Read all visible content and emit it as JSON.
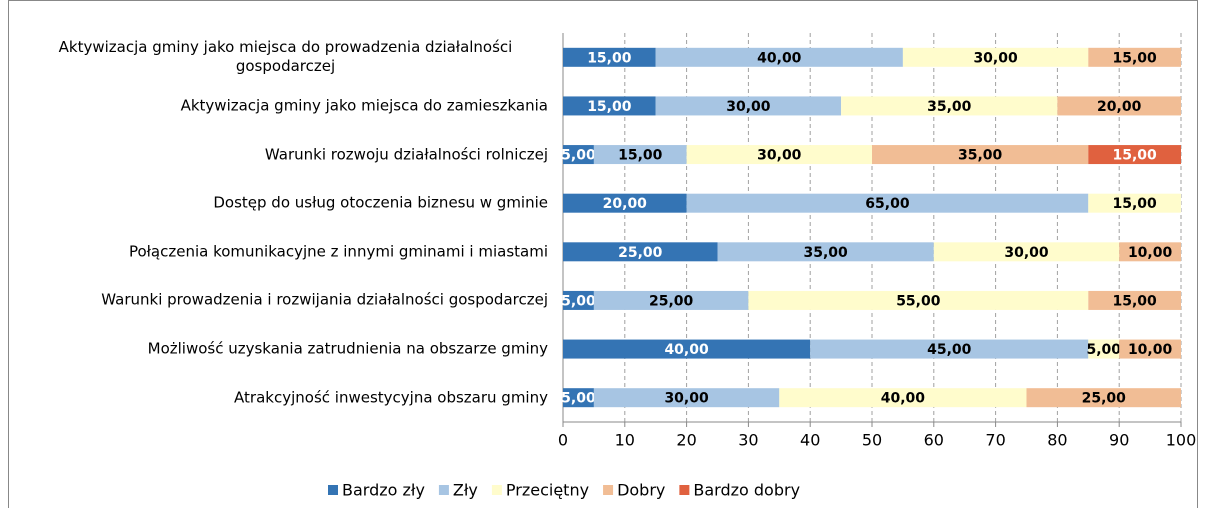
{
  "chart_data": {
    "type": "stacked_bar_horizontal",
    "categories": [
      "Aktywizacja gminy jako miejsca do prowadzenia działalności gospodarczej",
      "Aktywizacja gminy jako miejsca do zamieszkania",
      "Warunki rozwoju działalności rolniczej",
      "Dostęp do usług otoczenia biznesu w gminie",
      "Połączenia komunikacyjne z innymi gminami i miastami",
      "Warunki prowadzenia i rozwijania działalności gospodarczej",
      "Możliwość uzyskania zatrudnienia na obszarze gminy",
      "Atrakcyjność inwestycyjna obszaru gminy"
    ],
    "series": [
      {
        "name": "Bardzo zły",
        "color": "#3474b4",
        "values": [
          15,
          15,
          5,
          20,
          25,
          5,
          40,
          5
        ],
        "value_labels": [
          "15,00",
          "15,00",
          "5,00",
          "20,00",
          "25,00",
          "5,00",
          "40,00",
          "5,00"
        ]
      },
      {
        "name": "Zły",
        "color": "#a7c5e3",
        "values": [
          40,
          30,
          15,
          65,
          35,
          25,
          45,
          30
        ],
        "value_labels": [
          "40,00",
          "30,00",
          "15,00",
          "65,00",
          "35,00",
          "25,00",
          "45,00",
          "30,00"
        ]
      },
      {
        "name": "Przeciętny",
        "color": "#fffccc",
        "values": [
          30,
          35,
          30,
          15,
          30,
          55,
          5,
          40
        ],
        "value_labels": [
          "30,00",
          "35,00",
          "30,00",
          "15,00",
          "30,00",
          "55,00",
          "5,00",
          "40,00"
        ]
      },
      {
        "name": "Dobry",
        "color": "#f1bd95",
        "values": [
          15,
          20,
          35,
          null,
          10,
          15,
          10,
          25
        ],
        "value_labels": [
          "15,00",
          "20,00",
          "35,00",
          null,
          "10,00",
          "15,00",
          "10,00",
          "25,00"
        ]
      },
      {
        "name": "Bardzo dobry",
        "color": "#e0613f",
        "values": [
          null,
          null,
          15,
          null,
          null,
          null,
          null,
          null
        ],
        "value_labels": [
          null,
          null,
          "15,00",
          null,
          null,
          null,
          null,
          null
        ]
      }
    ],
    "xlim": [
      0,
      100
    ],
    "xticks": [
      0,
      10,
      20,
      30,
      40,
      50,
      60,
      70,
      80,
      90,
      100
    ],
    "grid": true,
    "legend": "bottom"
  }
}
